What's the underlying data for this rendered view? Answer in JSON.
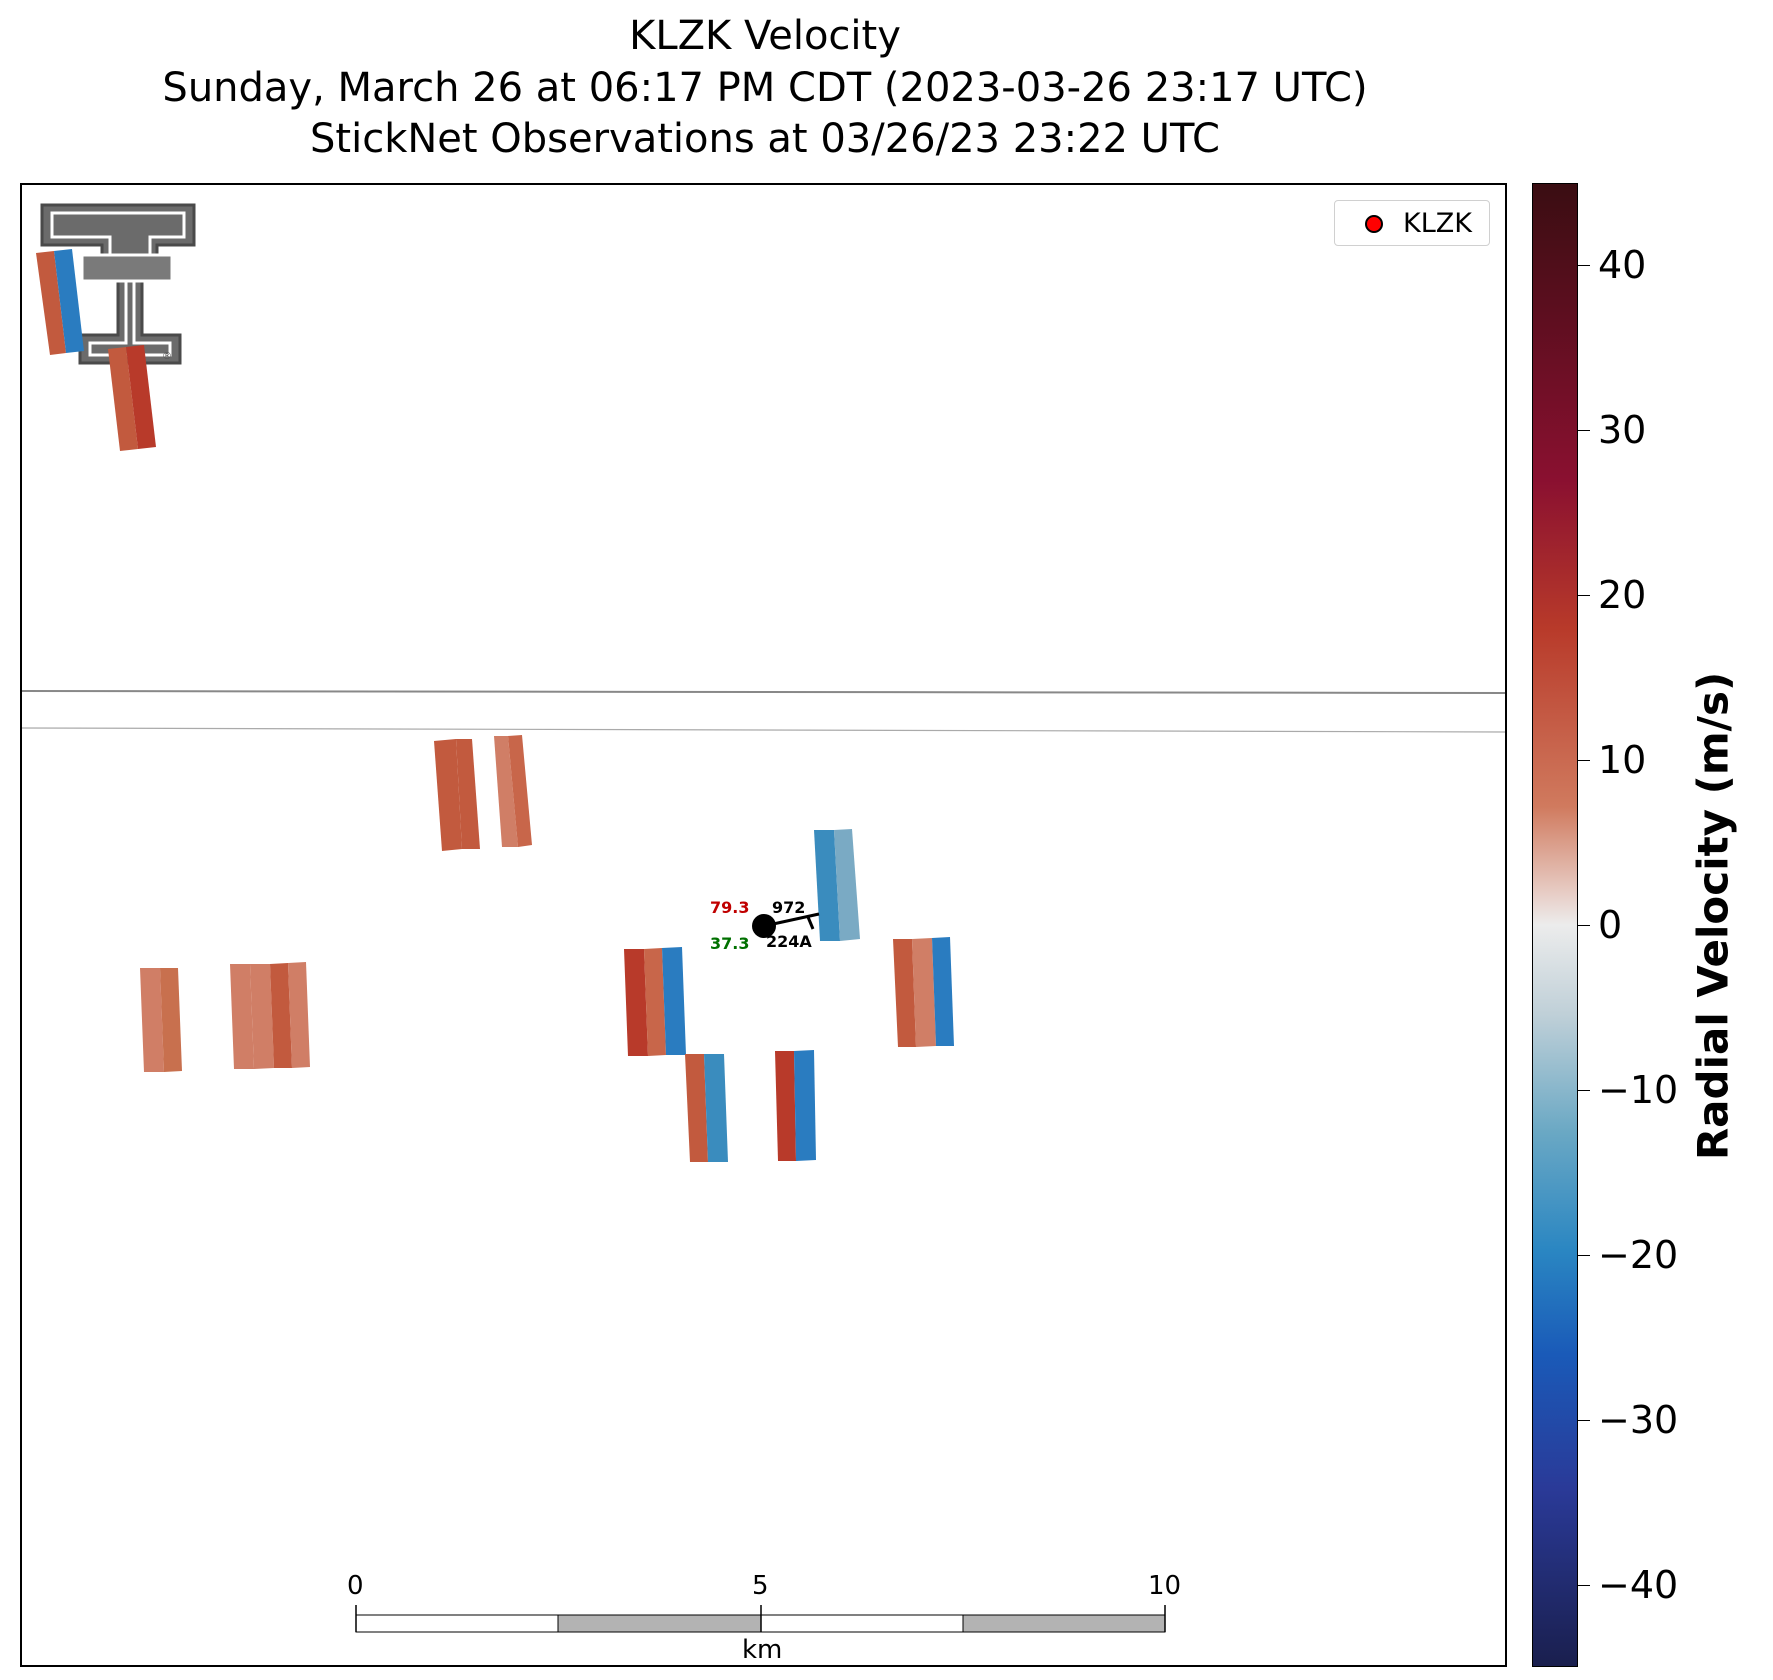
{
  "title": {
    "line1": "KLZK Velocity",
    "line2": "Sunday, March 26 at 06:17 PM CDT (2023-03-26 23:17 UTC)",
    "line3": "StickNet Observations at 03/26/23 23:22 UTC"
  },
  "legend": {
    "label": "KLZK"
  },
  "station": {
    "temp": "79.3",
    "dew": "37.3",
    "pressure": "972",
    "id": "224A"
  },
  "scale_bar": {
    "ticks": [
      "0",
      "5",
      "10"
    ],
    "unit": "km"
  },
  "colorbar": {
    "label": "Radial Velocity (m/s)",
    "ticks": [
      "40",
      "30",
      "20",
      "10",
      "0",
      "−10",
      "−20",
      "−30",
      "−40"
    ],
    "range": [
      -45,
      45
    ]
  },
  "colors": {
    "red_strong": "#b83a2a",
    "red_mid": "#c25a3e",
    "red_light": "#d07e66",
    "blue_strong": "#2a7cc0",
    "blue_mid": "#3a8cbe",
    "blue_light": "#7aaac4",
    "station_temp": "#c00000",
    "station_dew": "#007000",
    "legend_dot": "#ff0000"
  }
}
